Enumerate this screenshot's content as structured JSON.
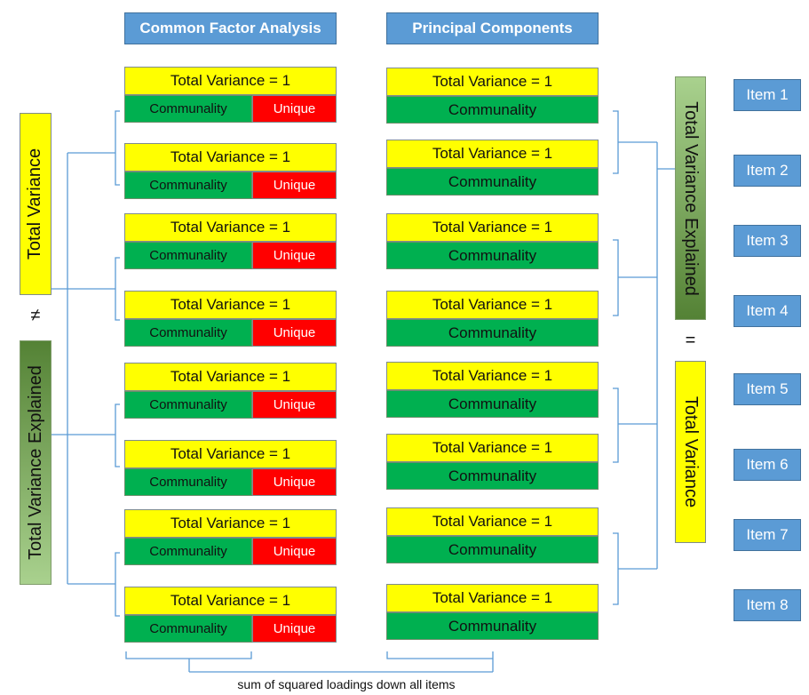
{
  "headers": {
    "cfa": "Common Factor Analysis",
    "pca": "Principal Components"
  },
  "cfa_rows": [
    {
      "total": "Total Variance = 1",
      "communality": "Communality",
      "unique": "Unique"
    },
    {
      "total": "Total Variance = 1",
      "communality": "Communality",
      "unique": "Unique"
    },
    {
      "total": "Total Variance = 1",
      "communality": "Communality",
      "unique": "Unique"
    },
    {
      "total": "Total Variance = 1",
      "communality": "Communality",
      "unique": "Unique"
    },
    {
      "total": "Total Variance = 1",
      "communality": "Communality",
      "unique": "Unique"
    },
    {
      "total": "Total Variance = 1",
      "communality": "Communality",
      "unique": "Unique"
    },
    {
      "total": "Total Variance = 1",
      "communality": "Communality",
      "unique": "Unique"
    },
    {
      "total": "Total Variance = 1",
      "communality": "Communality",
      "unique": "Unique"
    }
  ],
  "pca_rows": [
    {
      "total": "Total Variance = 1",
      "communality": "Communality"
    },
    {
      "total": "Total Variance = 1",
      "communality": "Communality"
    },
    {
      "total": "Total Variance = 1",
      "communality": "Communality"
    },
    {
      "total": "Total Variance = 1",
      "communality": "Communality"
    },
    {
      "total": "Total Variance = 1",
      "communality": "Communality"
    },
    {
      "total": "Total Variance = 1",
      "communality": "Communality"
    },
    {
      "total": "Total Variance = 1",
      "communality": "Communality"
    },
    {
      "total": "Total Variance = 1",
      "communality": "Communality"
    }
  ],
  "items": [
    "Item 1",
    "Item 2",
    "Item 3",
    "Item 4",
    "Item 5",
    "Item 6",
    "Item 7",
    "Item 8"
  ],
  "left": {
    "top_label": "Total Variance",
    "symbol": "≠",
    "bottom_label": "Total Variance Explained"
  },
  "right": {
    "top_label": "Total Variance Explained",
    "symbol": "=",
    "bottom_label": "Total Variance"
  },
  "caption": "sum of squared loadings down all items",
  "colors": {
    "header_blue": "#5b9bd5",
    "yellow": "#ffff00",
    "green": "#00b050",
    "red": "#ff0000",
    "gradient_green_dark": "#548235",
    "gradient_green_light": "#a9d18e"
  }
}
